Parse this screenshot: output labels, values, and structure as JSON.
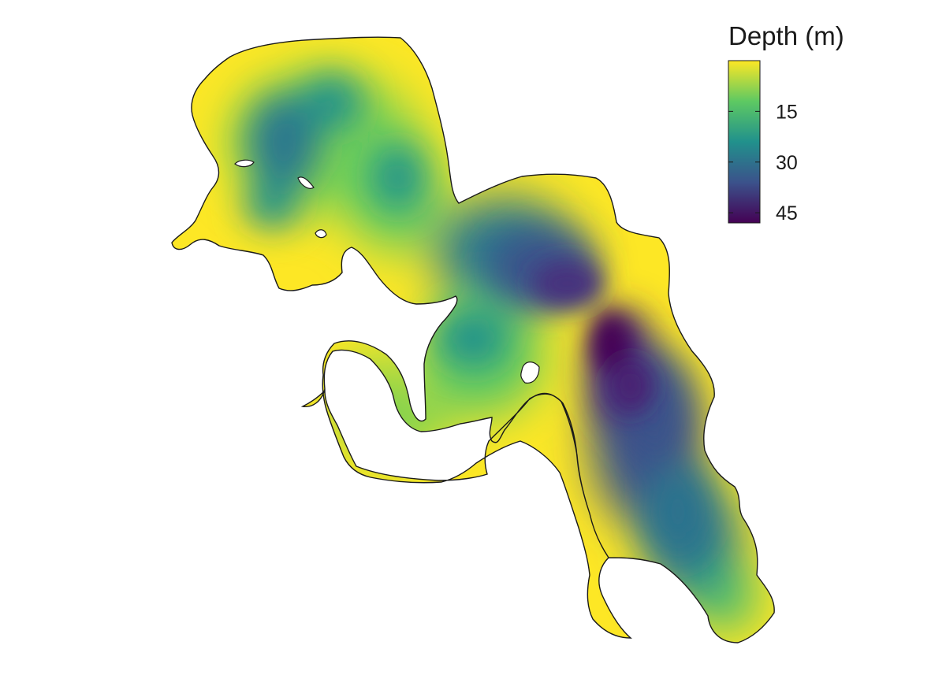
{
  "legend": {
    "title": "Depth (m)",
    "ticks": [
      {
        "value": 15,
        "label": "15"
      },
      {
        "value": 30,
        "label": "30"
      },
      {
        "value": 45,
        "label": "45"
      }
    ],
    "range": [
      0,
      48
    ],
    "colors": [
      "#fde725",
      "#5ec962",
      "#21918c",
      "#3b528b",
      "#440154"
    ]
  },
  "map": {
    "type": "bathymetry",
    "colormap": "viridis",
    "shoreline_color": "#1a1a1a"
  }
}
